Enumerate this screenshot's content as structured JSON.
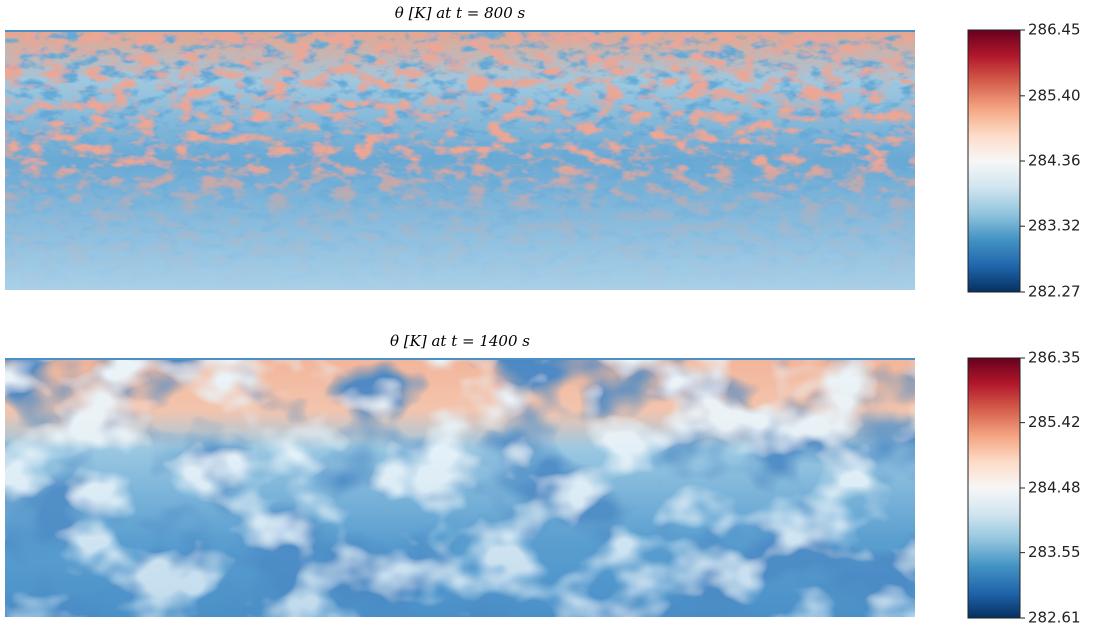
{
  "chart_data": [
    {
      "type": "heatmap",
      "title": "θ [K] at t = 800 s",
      "zlim": [
        282.27,
        286.45
      ],
      "zticks": [
        {
          "value": 286.45,
          "label": "286.45"
        },
        {
          "value": 285.4,
          "label": "285.40"
        },
        {
          "value": 284.36,
          "label": "284.36"
        },
        {
          "value": 283.32,
          "label": "283.32"
        },
        {
          "value": 282.27,
          "label": "282.27"
        }
      ]
    },
    {
      "type": "heatmap",
      "title": "θ [K] at t = 1400 s",
      "zlim": [
        282.61,
        286.35
      ],
      "zticks": [
        {
          "value": 286.35,
          "label": "286.35"
        },
        {
          "value": 285.42,
          "label": "285.42"
        },
        {
          "value": 284.48,
          "label": "284.48"
        },
        {
          "value": 283.55,
          "label": "283.55"
        },
        {
          "value": 282.61,
          "label": "282.61"
        }
      ]
    }
  ]
}
